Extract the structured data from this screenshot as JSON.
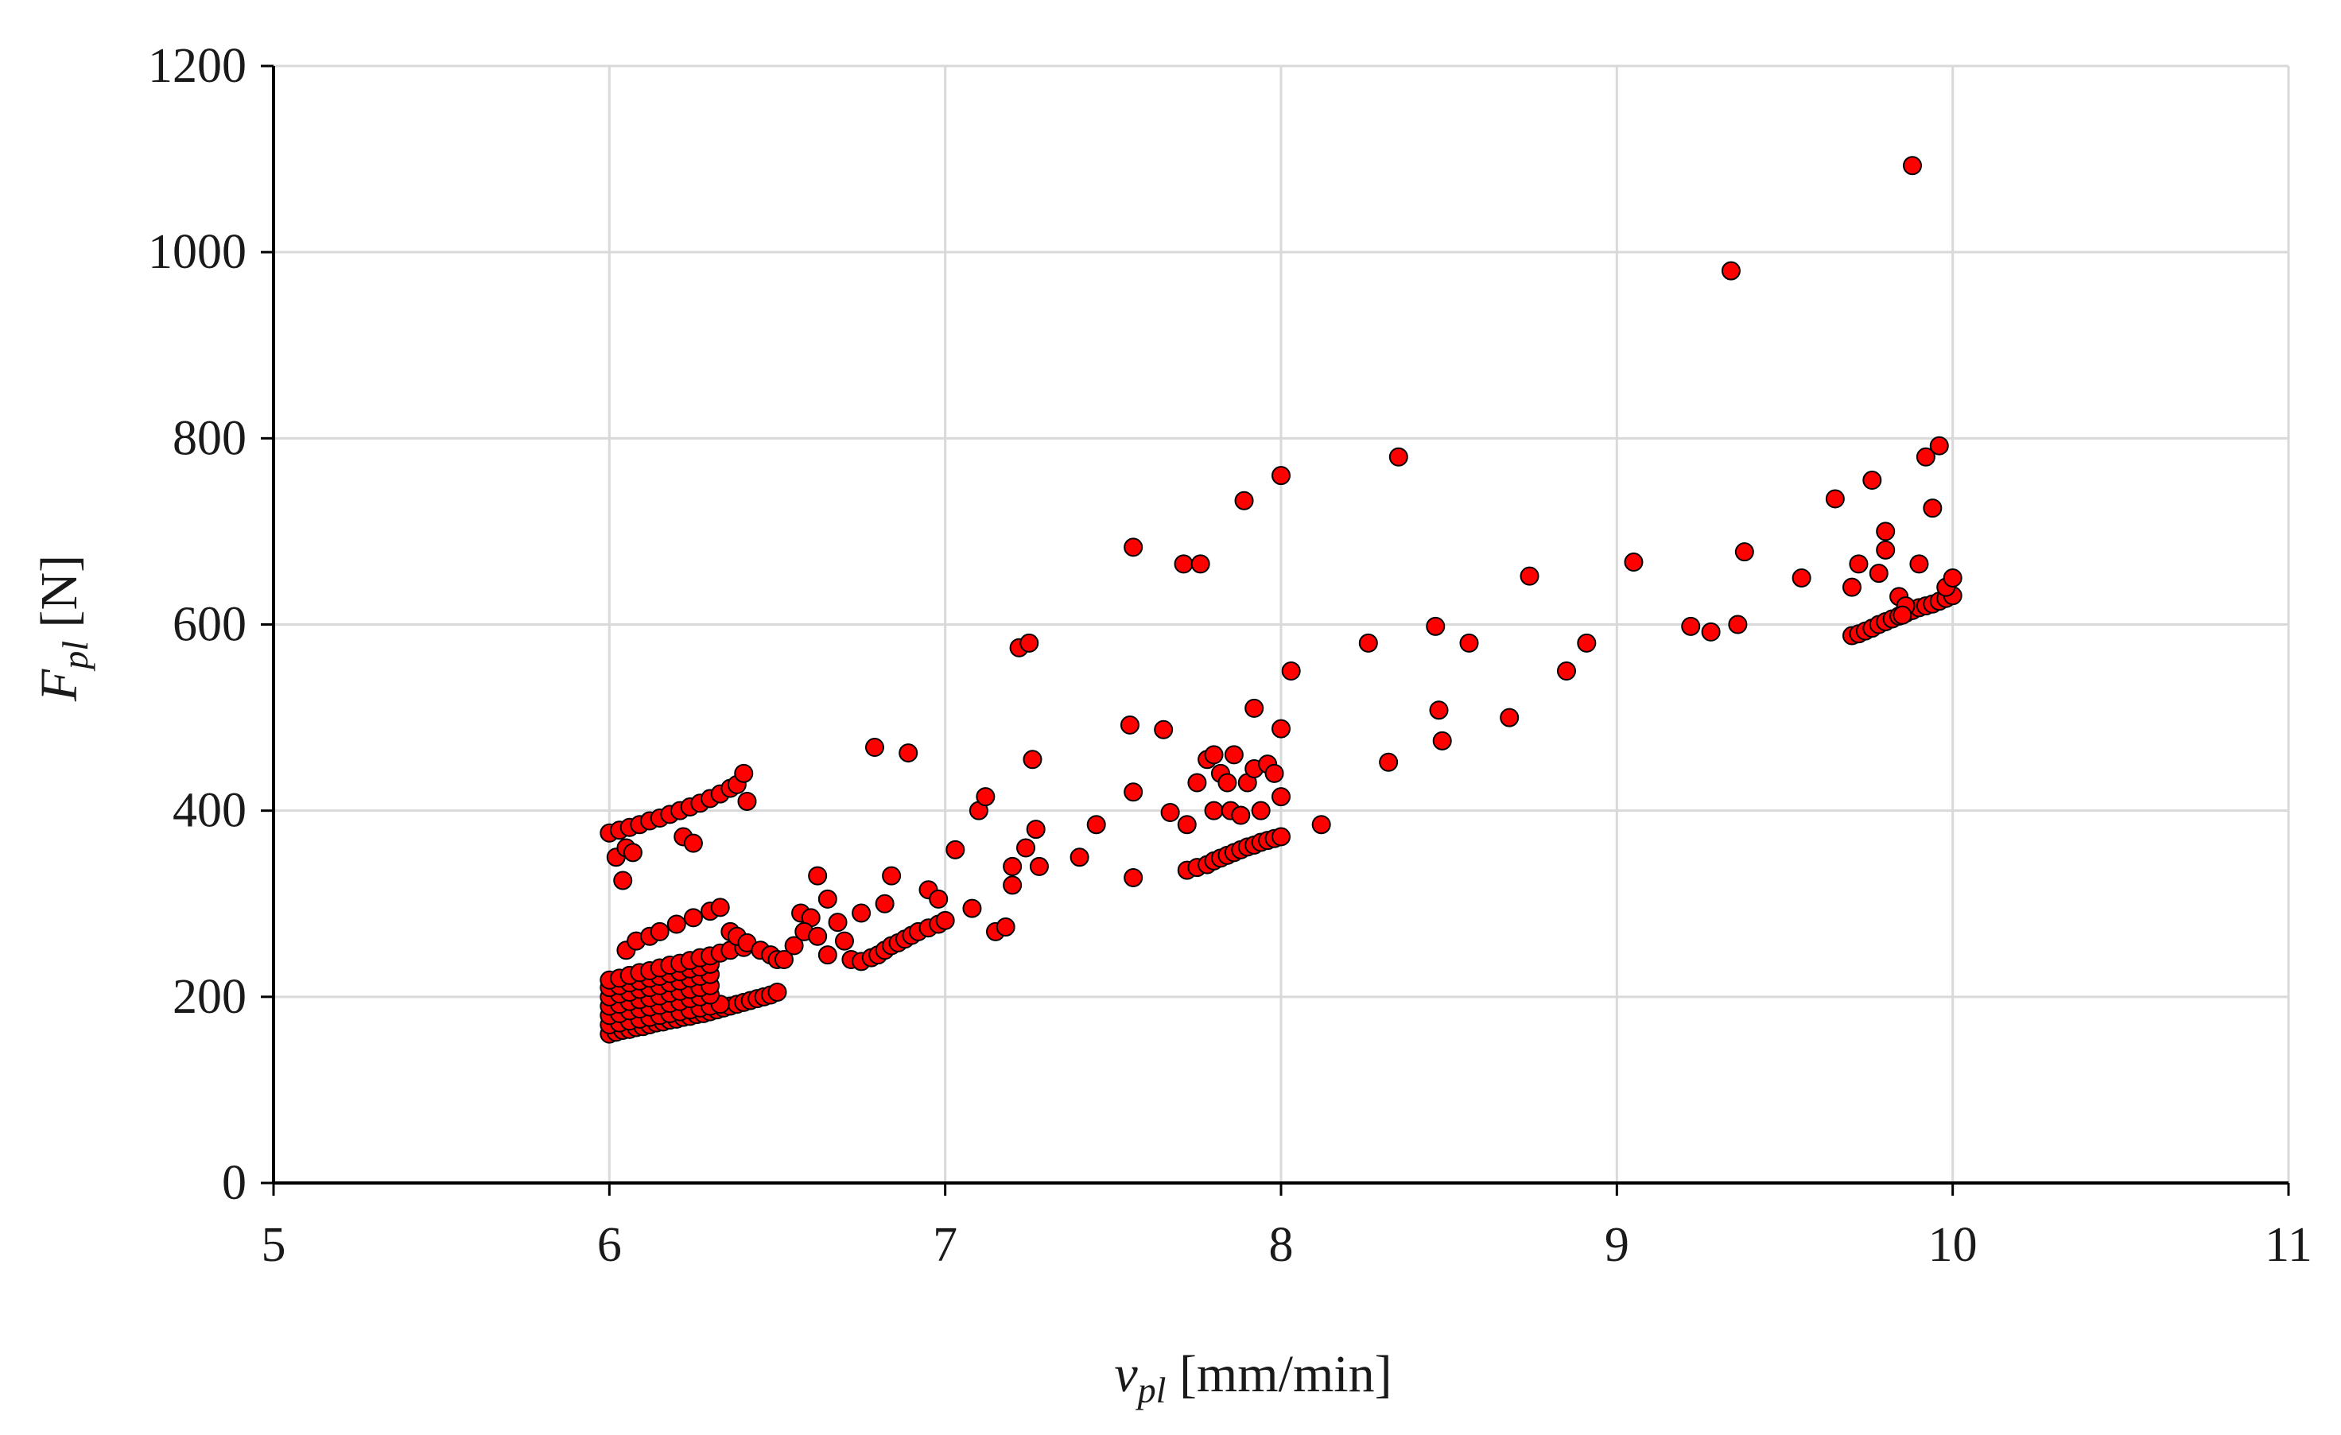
{
  "chart_data": {
    "type": "scatter",
    "xlabel": {
      "var": "v",
      "sub": "pl",
      "unit": " [mm/min]"
    },
    "ylabel": {
      "var": "F",
      "sub": "pl",
      "unit": " [N]"
    },
    "xlim": [
      5,
      11
    ],
    "ylim": [
      0,
      1200
    ],
    "xticks": [
      "5",
      "6",
      "7",
      "8",
      "9",
      "10",
      "11"
    ],
    "yticks": [
      "0",
      "200",
      "400",
      "600",
      "800",
      "1000",
      "1200"
    ],
    "grid": true,
    "marker_color": "#ff0000",
    "marker_edge": "#000000",
    "series": [
      {
        "points": [
          [
            6.0,
            160
          ],
          [
            6.02,
            162
          ],
          [
            6.04,
            164
          ],
          [
            6.06,
            165
          ],
          [
            6.08,
            167
          ],
          [
            6.1,
            168
          ],
          [
            6.12,
            170
          ],
          [
            6.14,
            172
          ],
          [
            6.16,
            173
          ],
          [
            6.18,
            175
          ],
          [
            6.2,
            176
          ],
          [
            6.22,
            178
          ],
          [
            6.24,
            179
          ],
          [
            6.26,
            181
          ],
          [
            6.28,
            182
          ],
          [
            6.3,
            184
          ],
          [
            6.32,
            186
          ],
          [
            6.34,
            188
          ],
          [
            6.36,
            190
          ],
          [
            6.38,
            192
          ],
          [
            6.4,
            194
          ],
          [
            6.42,
            196
          ],
          [
            6.44,
            198
          ],
          [
            6.46,
            200
          ],
          [
            6.48,
            202
          ],
          [
            6.5,
            205
          ],
          [
            6.0,
            170
          ],
          [
            6.03,
            172
          ],
          [
            6.06,
            174
          ],
          [
            6.09,
            176
          ],
          [
            6.12,
            178
          ],
          [
            6.15,
            180
          ],
          [
            6.18,
            182
          ],
          [
            6.21,
            184
          ],
          [
            6.24,
            186
          ],
          [
            6.27,
            188
          ],
          [
            6.3,
            190
          ],
          [
            6.33,
            192
          ],
          [
            6.0,
            180
          ],
          [
            6.03,
            182
          ],
          [
            6.06,
            185
          ],
          [
            6.09,
            187
          ],
          [
            6.12,
            189
          ],
          [
            6.15,
            191
          ],
          [
            6.18,
            193
          ],
          [
            6.21,
            195
          ],
          [
            6.24,
            198
          ],
          [
            6.27,
            200
          ],
          [
            6.3,
            202
          ],
          [
            6.0,
            190
          ],
          [
            6.03,
            192
          ],
          [
            6.06,
            195
          ],
          [
            6.09,
            197
          ],
          [
            6.12,
            199
          ],
          [
            6.15,
            201
          ],
          [
            6.18,
            204
          ],
          [
            6.21,
            206
          ],
          [
            6.24,
            208
          ],
          [
            6.27,
            210
          ],
          [
            6.3,
            212
          ],
          [
            6.0,
            200
          ],
          [
            6.03,
            203
          ],
          [
            6.06,
            205
          ],
          [
            6.09,
            208
          ],
          [
            6.12,
            210
          ],
          [
            6.15,
            212
          ],
          [
            6.18,
            215
          ],
          [
            6.21,
            217
          ],
          [
            6.24,
            220
          ],
          [
            6.27,
            222
          ],
          [
            6.3,
            224
          ],
          [
            6.0,
            210
          ],
          [
            6.03,
            212
          ],
          [
            6.06,
            215
          ],
          [
            6.09,
            217
          ],
          [
            6.12,
            220
          ],
          [
            6.15,
            222
          ],
          [
            6.18,
            225
          ],
          [
            6.21,
            227
          ],
          [
            6.24,
            230
          ],
          [
            6.27,
            232
          ],
          [
            6.3,
            235
          ],
          [
            6.0,
            218
          ],
          [
            6.03,
            220
          ],
          [
            6.06,
            223
          ],
          [
            6.09,
            226
          ],
          [
            6.12,
            228
          ],
          [
            6.15,
            231
          ],
          [
            6.18,
            234
          ],
          [
            6.21,
            236
          ],
          [
            6.24,
            239
          ],
          [
            6.27,
            242
          ],
          [
            6.3,
            244
          ],
          [
            6.33,
            247
          ],
          [
            6.36,
            250
          ],
          [
            6.4,
            253
          ],
          [
            6.05,
            250
          ],
          [
            6.08,
            260
          ],
          [
            6.12,
            265
          ],
          [
            6.15,
            270
          ],
          [
            6.2,
            278
          ],
          [
            6.25,
            285
          ],
          [
            6.3,
            292
          ],
          [
            6.33,
            296
          ],
          [
            6.36,
            270
          ],
          [
            6.38,
            265
          ],
          [
            6.41,
            258
          ],
          [
            6.45,
            250
          ],
          [
            6.48,
            245
          ],
          [
            6.5,
            240
          ],
          [
            6.0,
            376
          ],
          [
            6.03,
            379
          ],
          [
            6.06,
            382
          ],
          [
            6.09,
            385
          ],
          [
            6.12,
            389
          ],
          [
            6.15,
            392
          ],
          [
            6.18,
            396
          ],
          [
            6.21,
            400
          ],
          [
            6.24,
            404
          ],
          [
            6.27,
            408
          ],
          [
            6.3,
            413
          ],
          [
            6.33,
            418
          ],
          [
            6.36,
            424
          ],
          [
            6.38,
            428
          ],
          [
            6.4,
            440
          ],
          [
            6.41,
            410
          ],
          [
            6.02,
            350
          ],
          [
            6.05,
            360
          ],
          [
            6.07,
            355
          ],
          [
            6.04,
            325
          ],
          [
            6.22,
            372
          ],
          [
            6.25,
            365
          ],
          [
            6.52,
            240
          ],
          [
            6.55,
            255
          ],
          [
            6.57,
            290
          ],
          [
            6.6,
            285
          ],
          [
            6.58,
            270
          ],
          [
            6.62,
            330
          ],
          [
            6.65,
            305
          ],
          [
            6.62,
            265
          ],
          [
            6.65,
            245
          ],
          [
            6.68,
            280
          ],
          [
            6.7,
            260
          ],
          [
            6.72,
            240
          ],
          [
            6.75,
            238
          ],
          [
            6.78,
            242
          ],
          [
            6.8,
            245
          ],
          [
            6.82,
            250
          ],
          [
            6.84,
            255
          ],
          [
            6.86,
            258
          ],
          [
            6.88,
            262
          ],
          [
            6.9,
            266
          ],
          [
            6.92,
            270
          ],
          [
            6.95,
            274
          ],
          [
            6.98,
            278
          ],
          [
            7.0,
            282
          ],
          [
            6.79,
            468
          ],
          [
            6.89,
            462
          ],
          [
            6.84,
            330
          ],
          [
            6.82,
            300
          ],
          [
            6.75,
            290
          ],
          [
            6.95,
            315
          ],
          [
            6.98,
            305
          ],
          [
            7.03,
            358
          ],
          [
            7.08,
            295
          ],
          [
            7.1,
            400
          ],
          [
            7.12,
            415
          ],
          [
            7.15,
            270
          ],
          [
            7.18,
            275
          ],
          [
            7.2,
            320
          ],
          [
            7.2,
            340
          ],
          [
            7.22,
            575
          ],
          [
            7.25,
            580
          ],
          [
            7.26,
            455
          ],
          [
            7.27,
            380
          ],
          [
            7.28,
            340
          ],
          [
            7.24,
            360
          ],
          [
            7.4,
            350
          ],
          [
            7.45,
            385
          ],
          [
            7.55,
            492
          ],
          [
            7.56,
            420
          ],
          [
            7.56,
            328
          ],
          [
            7.56,
            683
          ],
          [
            7.65,
            487
          ],
          [
            7.67,
            398
          ],
          [
            7.71,
            665
          ],
          [
            7.76,
            665
          ],
          [
            7.72,
            385
          ],
          [
            7.72,
            336
          ],
          [
            7.75,
            339
          ],
          [
            7.78,
            342
          ],
          [
            7.8,
            346
          ],
          [
            7.82,
            349
          ],
          [
            7.84,
            352
          ],
          [
            7.86,
            355
          ],
          [
            7.88,
            358
          ],
          [
            7.9,
            361
          ],
          [
            7.92,
            363
          ],
          [
            7.94,
            366
          ],
          [
            7.96,
            368
          ],
          [
            7.98,
            370
          ],
          [
            8.0,
            372
          ],
          [
            7.75,
            430
          ],
          [
            7.78,
            455
          ],
          [
            7.8,
            460
          ],
          [
            7.82,
            440
          ],
          [
            7.84,
            430
          ],
          [
            7.86,
            460
          ],
          [
            7.8,
            400
          ],
          [
            7.85,
            400
          ],
          [
            7.88,
            395
          ],
          [
            7.9,
            430
          ],
          [
            7.92,
            445
          ],
          [
            7.94,
            400
          ],
          [
            7.96,
            450
          ],
          [
            7.98,
            440
          ],
          [
            8.0,
            415
          ],
          [
            8.0,
            488
          ],
          [
            7.92,
            510
          ],
          [
            7.89,
            733
          ],
          [
            8.0,
            760
          ],
          [
            8.03,
            550
          ],
          [
            8.12,
            385
          ],
          [
            8.26,
            580
          ],
          [
            8.32,
            452
          ],
          [
            8.35,
            780
          ],
          [
            8.46,
            598
          ],
          [
            8.47,
            508
          ],
          [
            8.48,
            475
          ],
          [
            8.56,
            580
          ],
          [
            8.68,
            500
          ],
          [
            8.74,
            652
          ],
          [
            8.85,
            550
          ],
          [
            8.91,
            580
          ],
          [
            9.05,
            667
          ],
          [
            9.22,
            598
          ],
          [
            9.28,
            592
          ],
          [
            9.34,
            980
          ],
          [
            9.36,
            600
          ],
          [
            9.38,
            678
          ],
          [
            9.55,
            650
          ],
          [
            9.65,
            735
          ],
          [
            9.7,
            588
          ],
          [
            9.72,
            590
          ],
          [
            9.74,
            593
          ],
          [
            9.76,
            596
          ],
          [
            9.78,
            600
          ],
          [
            9.8,
            603
          ],
          [
            9.82,
            606
          ],
          [
            9.84,
            609
          ],
          [
            9.86,
            612
          ],
          [
            9.88,
            615
          ],
          [
            9.9,
            618
          ],
          [
            9.92,
            620
          ],
          [
            9.94,
            622
          ],
          [
            9.96,
            625
          ],
          [
            9.98,
            628
          ],
          [
            10.0,
            631
          ],
          [
            9.72,
            665
          ],
          [
            9.76,
            755
          ],
          [
            9.78,
            655
          ],
          [
            9.8,
            700
          ],
          [
            9.8,
            680
          ],
          [
            9.84,
            630
          ],
          [
            9.86,
            620
          ],
          [
            9.88,
            1093
          ],
          [
            9.9,
            665
          ],
          [
            9.92,
            780
          ],
          [
            9.94,
            725
          ],
          [
            9.96,
            792
          ],
          [
            9.98,
            640
          ],
          [
            10.0,
            650
          ],
          [
            9.85,
            610
          ],
          [
            9.7,
            640
          ]
        ]
      }
    ]
  }
}
